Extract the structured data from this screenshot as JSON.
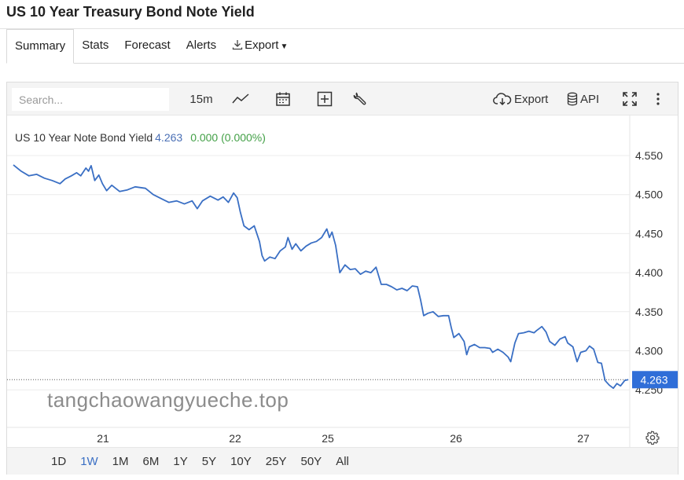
{
  "page": {
    "title": "US 10 Year Treasury Bond Note Yield"
  },
  "tabs": [
    {
      "label": "Summary",
      "active": true
    },
    {
      "label": "Stats"
    },
    {
      "label": "Forecast"
    },
    {
      "label": "Alerts"
    },
    {
      "label": "Export"
    }
  ],
  "toolbar": {
    "search_placeholder": "Search...",
    "interval": "15m",
    "export_label": "Export",
    "api_label": "API"
  },
  "legend": {
    "name": "US 10 Year Note Bond Yield",
    "value": "4.263",
    "change": "0.000 (0.000%)"
  },
  "ranges": [
    {
      "label": "1D"
    },
    {
      "label": "1W",
      "active": true
    },
    {
      "label": "1M"
    },
    {
      "label": "6M"
    },
    {
      "label": "1Y"
    },
    {
      "label": "5Y"
    },
    {
      "label": "10Y"
    },
    {
      "label": "25Y"
    },
    {
      "label": "50Y"
    },
    {
      "label": "All"
    }
  ],
  "watermark": "tangchaowangyueche.top",
  "colors": {
    "line": "#3a6fc4",
    "change_positive": "#43a047",
    "price_badge": "#2f6ed8",
    "grid": "#ececec"
  },
  "chart_data": {
    "type": "line",
    "title": "US 10 Year Note Bond Yield",
    "x_ticks": [
      "21",
      "22",
      "25",
      "26",
      "27"
    ],
    "y_ticks": [
      4.55,
      4.5,
      4.45,
      4.4,
      4.35,
      4.3,
      4.25
    ],
    "ylim": [
      4.2,
      4.59
    ],
    "last_value": 4.263,
    "grid": true,
    "series": [
      {
        "name": "US 10 Year Note Bond Yield",
        "points": [
          [
            0.0,
            4.538
          ],
          [
            0.15,
            4.53
          ],
          [
            0.3,
            4.524
          ],
          [
            0.45,
            4.526
          ],
          [
            0.6,
            4.521
          ],
          [
            0.75,
            4.518
          ],
          [
            0.9,
            4.514
          ],
          [
            1.0,
            4.52
          ],
          [
            1.12,
            4.524
          ],
          [
            1.22,
            4.528
          ],
          [
            1.3,
            4.524
          ],
          [
            1.4,
            4.534
          ],
          [
            1.45,
            4.53
          ],
          [
            1.5,
            4.537
          ],
          [
            1.57,
            4.518
          ],
          [
            1.65,
            4.525
          ],
          [
            1.72,
            4.514
          ],
          [
            1.8,
            4.505
          ],
          [
            1.9,
            4.512
          ],
          [
            2.05,
            4.504
          ],
          [
            2.2,
            4.506
          ],
          [
            2.35,
            4.51
          ],
          [
            2.55,
            4.508
          ],
          [
            2.7,
            4.5
          ],
          [
            2.85,
            4.495
          ],
          [
            3.0,
            4.49
          ],
          [
            3.15,
            4.492
          ],
          [
            3.3,
            4.488
          ],
          [
            3.45,
            4.492
          ],
          [
            3.55,
            4.482
          ],
          [
            3.65,
            4.492
          ],
          [
            3.8,
            4.498
          ],
          [
            3.95,
            4.493
          ],
          [
            4.05,
            4.497
          ],
          [
            4.15,
            4.49
          ],
          [
            4.25,
            4.502
          ],
          [
            4.32,
            4.496
          ],
          [
            4.38,
            4.478
          ],
          [
            4.45,
            4.46
          ],
          [
            4.55,
            4.455
          ],
          [
            4.65,
            4.46
          ],
          [
            4.75,
            4.44
          ],
          [
            4.8,
            4.422
          ],
          [
            4.85,
            4.415
          ],
          [
            4.95,
            4.42
          ],
          [
            5.05,
            4.418
          ],
          [
            5.15,
            4.428
          ],
          [
            5.25,
            4.433
          ],
          [
            5.3,
            4.445
          ],
          [
            5.38,
            4.43
          ],
          [
            5.45,
            4.437
          ],
          [
            5.55,
            4.428
          ],
          [
            5.65,
            4.434
          ],
          [
            5.75,
            4.438
          ],
          [
            5.85,
            4.44
          ],
          [
            5.95,
            4.445
          ],
          [
            6.05,
            4.456
          ],
          [
            6.1,
            4.445
          ],
          [
            6.15,
            4.452
          ],
          [
            6.22,
            4.435
          ],
          [
            6.3,
            4.4
          ],
          [
            6.4,
            4.41
          ],
          [
            6.5,
            4.404
          ],
          [
            6.6,
            4.405
          ],
          [
            6.7,
            4.398
          ],
          [
            6.8,
            4.402
          ],
          [
            6.9,
            4.4
          ],
          [
            7.0,
            4.407
          ],
          [
            7.1,
            4.385
          ],
          [
            7.2,
            4.385
          ],
          [
            7.3,
            4.382
          ],
          [
            7.4,
            4.378
          ],
          [
            7.5,
            4.38
          ],
          [
            7.6,
            4.377
          ],
          [
            7.7,
            4.383
          ],
          [
            7.8,
            4.382
          ],
          [
            7.86,
            4.365
          ],
          [
            7.92,
            4.345
          ],
          [
            8.0,
            4.348
          ],
          [
            8.1,
            4.35
          ],
          [
            8.2,
            4.344
          ],
          [
            8.3,
            4.345
          ],
          [
            8.4,
            4.345
          ],
          [
            8.45,
            4.33
          ],
          [
            8.5,
            4.317
          ],
          [
            8.6,
            4.322
          ],
          [
            8.7,
            4.312
          ],
          [
            8.75,
            4.295
          ],
          [
            8.8,
            4.305
          ],
          [
            8.9,
            4.308
          ],
          [
            9.0,
            4.304
          ],
          [
            9.1,
            4.304
          ],
          [
            9.2,
            4.303
          ],
          [
            9.25,
            4.298
          ],
          [
            9.35,
            4.302
          ],
          [
            9.45,
            4.298
          ],
          [
            9.55,
            4.292
          ],
          [
            9.6,
            4.286
          ],
          [
            9.68,
            4.31
          ],
          [
            9.75,
            4.322
          ],
          [
            9.85,
            4.323
          ],
          [
            9.95,
            4.325
          ],
          [
            10.05,
            4.323
          ],
          [
            10.1,
            4.326
          ],
          [
            10.2,
            4.331
          ],
          [
            10.28,
            4.324
          ],
          [
            10.35,
            4.312
          ],
          [
            10.45,
            4.307
          ],
          [
            10.55,
            4.315
          ],
          [
            10.65,
            4.318
          ],
          [
            10.7,
            4.31
          ],
          [
            10.8,
            4.305
          ],
          [
            10.88,
            4.286
          ],
          [
            10.95,
            4.298
          ],
          [
            11.05,
            4.3
          ],
          [
            11.12,
            4.306
          ],
          [
            11.2,
            4.302
          ],
          [
            11.28,
            4.285
          ],
          [
            11.35,
            4.284
          ],
          [
            11.42,
            4.262
          ],
          [
            11.5,
            4.256
          ],
          [
            11.58,
            4.252
          ],
          [
            11.65,
            4.258
          ],
          [
            11.72,
            4.255
          ],
          [
            11.8,
            4.262
          ],
          [
            11.87,
            4.263
          ]
        ]
      }
    ]
  }
}
